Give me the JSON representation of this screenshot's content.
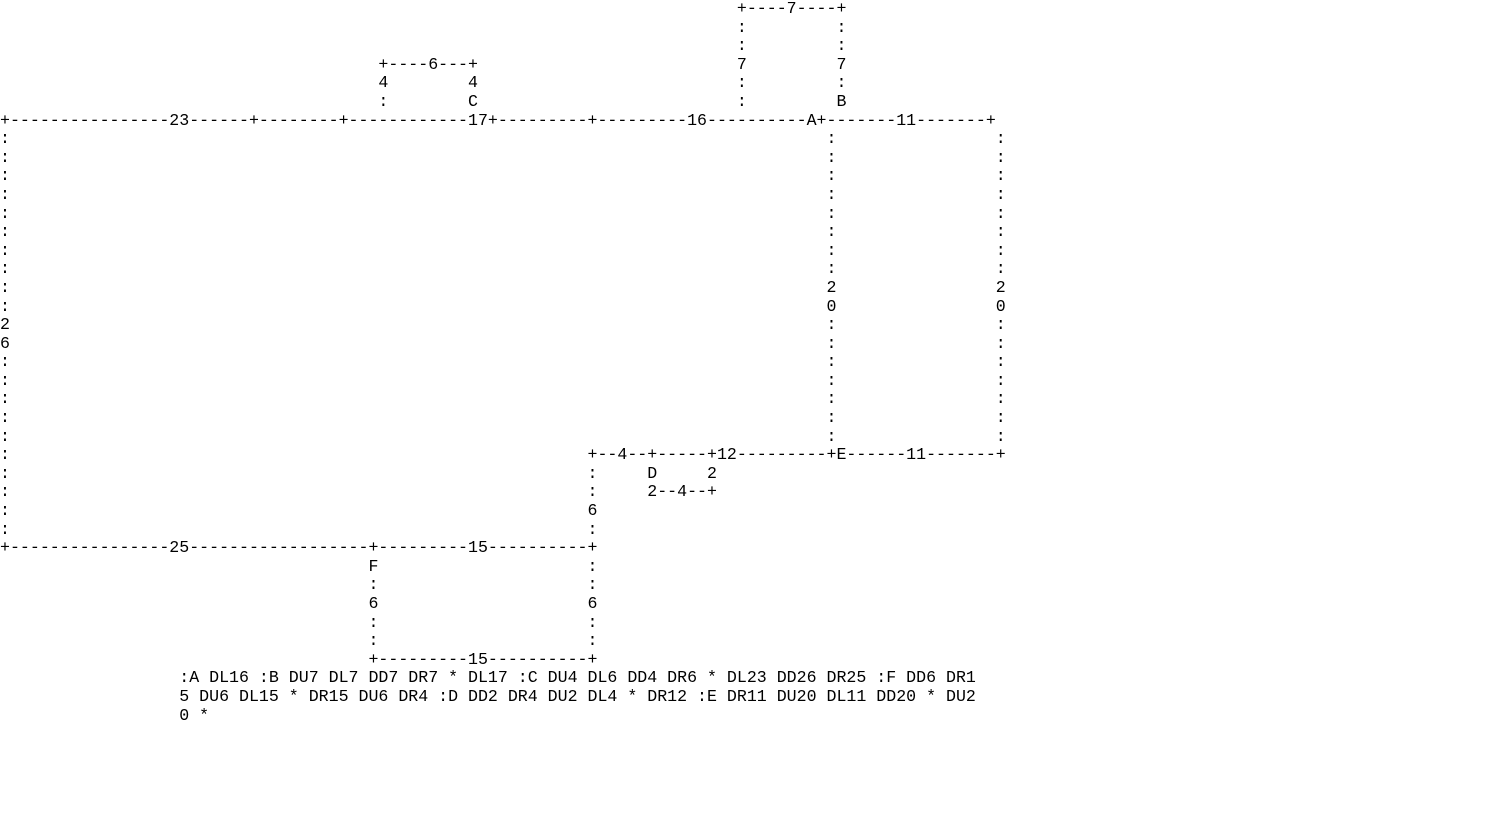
{
  "diagram": {
    "lines": [
      "                                                                          +----7----+",
      "                                                                          :         :",
      "                                                                          :         :",
      "                                      +----6---+                          7         7",
      "                                      4        4                          :         :",
      "                                      :        C                          :         B",
      "+----------------23------+--------+------------17+---------+---------16----------A+-------11-------+",
      ":                                                                                  :                :",
      ":                                                                                  :                :",
      ":                                                                                  :                :",
      ":                                                                                  :                :",
      ":                                                                                  :                :",
      ":                                                                                  :                :",
      ":                                                                                  :                :",
      ":                                                                                  :                :",
      ":                                                                                  2                2",
      ":                                                                                  0                0",
      "2                                                                                  :                :",
      "6                                                                                  :                :",
      ":                                                                                  :                :",
      ":                                                                                  :                :",
      ":                                                                                  :                :",
      ":                                                                                  :                :",
      ":                                                                                  :                :",
      ":                                                          +--4--+-----+12---------+E------11-------+",
      ":                                                          :     D     2",
      ":                                                          :     2--4--+",
      ":                                                          6",
      ":                                                          :",
      "+----------------25------------------+---------15----------+",
      "                                     F                     :",
      "                                     :                     :",
      "                                     6                     6",
      "                                     :                     :",
      "                                     :                     :",
      "                                     +---------15----------+",
      "                  :A DL16 :B DU7 DL7 DD7 DR7 * DL17 :C DU4 DL6 DD4 DR6 * DL23 DD26 DR25 :F DD6 DR1",
      "                  5 DU6 DL15 * DR15 DU6 DR4 :D DD2 DR4 DU2 DL4 * DR12 :E DR11 DU20 DL11 DD20 * DU2",
      "                  0 *"
    ]
  }
}
